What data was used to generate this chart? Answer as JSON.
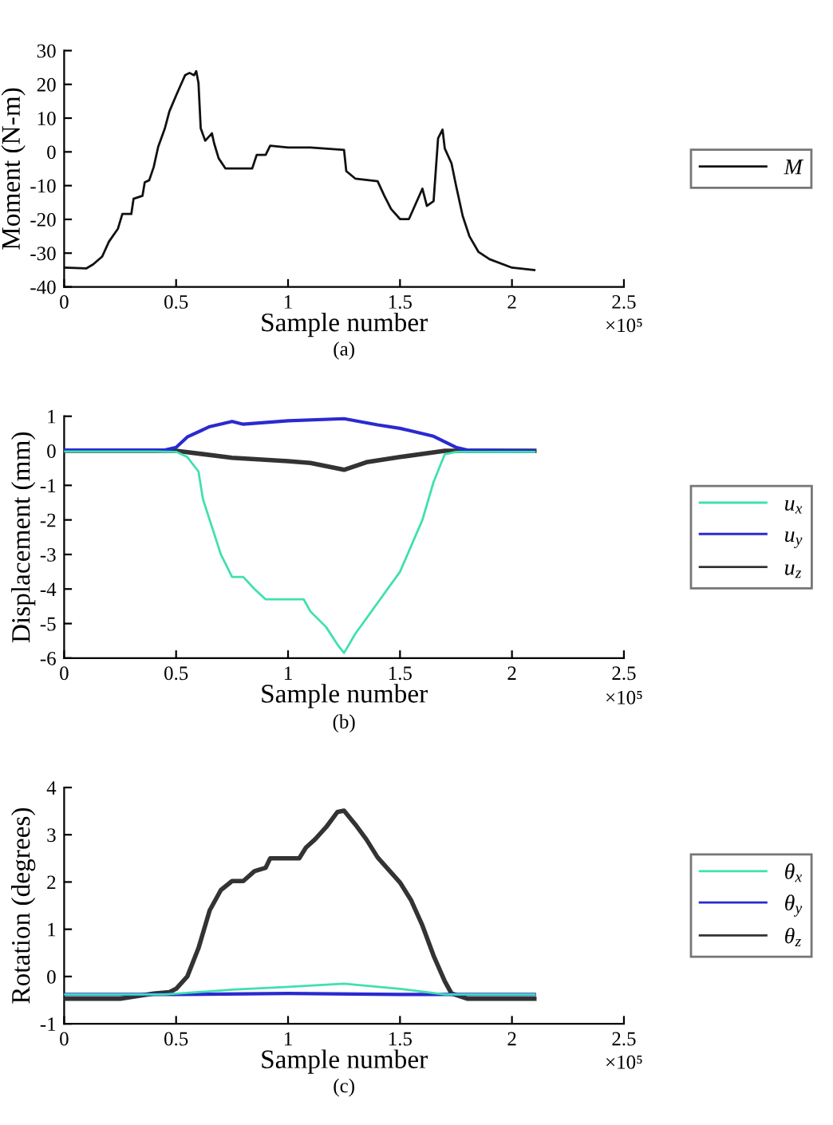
{
  "chart_data": [
    {
      "type": "line",
      "xlabel": "Sample number",
      "ylabel": "Moment (N-m)",
      "annotations": [
        "×10⁵",
        "(a)"
      ],
      "xlim": [
        0,
        2.5
      ],
      "xticks": [
        0,
        0.5,
        1,
        1.5,
        2,
        2.5
      ],
      "ylim": [
        -40,
        30
      ],
      "yticks": [
        -40,
        -30,
        -20,
        -10,
        0,
        10,
        20,
        30
      ],
      "grid": false,
      "legend": "right",
      "line_style": "solid",
      "marker": "none",
      "series": [
        {
          "name": "M",
          "color": "#111111",
          "x": [
            0,
            0.1,
            0.13,
            0.17,
            0.2,
            0.24,
            0.26,
            0.3,
            0.31,
            0.35,
            0.36,
            0.38,
            0.4,
            0.42,
            0.45,
            0.47,
            0.5,
            0.52,
            0.54,
            0.56,
            0.58,
            0.59,
            0.6,
            0.61,
            0.63,
            0.66,
            0.67,
            0.69,
            0.72,
            0.8,
            0.84,
            0.86,
            0.9,
            0.92,
            1.0,
            1.1,
            1.25,
            1.26,
            1.3,
            1.4,
            1.43,
            1.46,
            1.5,
            1.54,
            1.57,
            1.6,
            1.62,
            1.65,
            1.67,
            1.69,
            1.7,
            1.73,
            1.75,
            1.78,
            1.81,
            1.85,
            1.9,
            2.0,
            2.1
          ],
          "values": [
            -34.3,
            -34.5,
            -33.3,
            -31,
            -26.6,
            -22.8,
            -18.4,
            -18.4,
            -13.9,
            -13,
            -9,
            -8.4,
            -4.5,
            1.5,
            7,
            12,
            16.7,
            19.7,
            22.7,
            23.4,
            22.7,
            23.9,
            20.4,
            7,
            3.3,
            5.5,
            2.5,
            -1.9,
            -4.9,
            -4.9,
            -4.9,
            -0.9,
            -0.9,
            1.8,
            1.3,
            1.3,
            0.6,
            -5.7,
            -7.9,
            -8.7,
            -13,
            -16.9,
            -19.9,
            -19.9,
            -15.4,
            -10.9,
            -16,
            -14.6,
            4,
            6.6,
            1,
            -3.4,
            -9.9,
            -19,
            -25,
            -29.6,
            -31.8,
            -34.3,
            -35
          ]
        }
      ]
    },
    {
      "type": "line",
      "xlabel": "Sample number",
      "ylabel": "Displacement (mm)",
      "annotations": [
        "×10⁵",
        "(b)"
      ],
      "xlim": [
        0,
        2.5
      ],
      "xticks": [
        0,
        0.5,
        1,
        1.5,
        2,
        2.5
      ],
      "ylim": [
        -6,
        1
      ],
      "yticks": [
        -6,
        -5,
        -4,
        -3,
        -2,
        -1,
        0,
        1
      ],
      "grid": false,
      "legend": "right",
      "line_style": "solid",
      "marker": "none",
      "series": [
        {
          "name": "u$_{x}$",
          "color": "#40e0b0",
          "x": [
            0,
            0.4,
            0.5,
            0.55,
            0.6,
            0.62,
            0.65,
            0.7,
            0.75,
            0.8,
            0.85,
            0.9,
            1.0,
            1.07,
            1.1,
            1.17,
            1.22,
            1.25,
            1.3,
            1.4,
            1.5,
            1.6,
            1.65,
            1.7,
            1.75,
            2.1
          ],
          "values": [
            -0.02,
            -0.02,
            -0.03,
            -0.18,
            -0.6,
            -1.4,
            -2,
            -3,
            -3.65,
            -3.65,
            -4,
            -4.3,
            -4.3,
            -4.3,
            -4.65,
            -5.1,
            -5.6,
            -5.85,
            -5.3,
            -4.4,
            -3.5,
            -2,
            -0.9,
            -0.1,
            -0.03,
            -0.03
          ]
        },
        {
          "name": "u$_{y}$",
          "color": "#2a2ad0",
          "x": [
            0,
            0.45,
            0.5,
            0.55,
            0.65,
            0.75,
            0.8,
            1.0,
            1.25,
            1.4,
            1.5,
            1.65,
            1.75,
            1.8,
            2.1
          ],
          "values": [
            0.02,
            0.02,
            0.1,
            0.4,
            0.7,
            0.85,
            0.77,
            0.87,
            0.93,
            0.75,
            0.65,
            0.42,
            0.1,
            0.02,
            0
          ]
        },
        {
          "name": "u$_{z}$",
          "color": "#333333",
          "x": [
            0,
            0.5,
            0.75,
            1.0,
            1.1,
            1.25,
            1.35,
            1.5,
            1.7,
            2.1
          ],
          "values": [
            0,
            0,
            -0.2,
            -0.3,
            -0.35,
            -0.55,
            -0.33,
            -0.18,
            0,
            0
          ]
        }
      ]
    },
    {
      "type": "line",
      "xlabel": "Sample number",
      "ylabel": "Rotation (degrees)",
      "annotations": [
        "×10⁵",
        "(c)"
      ],
      "xlim": [
        0,
        2.5
      ],
      "xticks": [
        0,
        0.5,
        1,
        1.5,
        2,
        2.5
      ],
      "ylim": [
        -1,
        4
      ],
      "yticks": [
        -1,
        0,
        1,
        2,
        3,
        4
      ],
      "grid": false,
      "legend": "right",
      "line_style": "solid",
      "marker": "none",
      "series": [
        {
          "name": "θ$_{x}$",
          "color": "#40e0b0",
          "x": [
            0,
            0.45,
            0.75,
            1.0,
            1.25,
            1.5,
            1.7,
            2.1
          ],
          "values": [
            -0.38,
            -0.38,
            -0.28,
            -0.22,
            -0.15,
            -0.26,
            -0.38,
            -0.38
          ]
        },
        {
          "name": "θ$_{y}$",
          "color": "#2a2ad0",
          "x": [
            0,
            0.5,
            1.0,
            1.5,
            2.1
          ],
          "values": [
            -0.38,
            -0.38,
            -0.36,
            -0.38,
            -0.38
          ]
        },
        {
          "name": "θ$_{z}$",
          "color": "#333333",
          "x": [
            0,
            0.25,
            0.4,
            0.47,
            0.5,
            0.55,
            0.6,
            0.65,
            0.7,
            0.75,
            0.8,
            0.85,
            0.9,
            0.92,
            1.05,
            1.08,
            1.12,
            1.17,
            1.22,
            1.25,
            1.3,
            1.35,
            1.4,
            1.5,
            1.55,
            1.6,
            1.65,
            1.7,
            1.73,
            1.8,
            2.1
          ],
          "values": [
            -0.47,
            -0.47,
            -0.36,
            -0.33,
            -0.26,
            0,
            0.6,
            1.4,
            1.83,
            2.02,
            2.02,
            2.23,
            2.3,
            2.5,
            2.5,
            2.73,
            2.9,
            3.16,
            3.48,
            3.51,
            3.22,
            2.9,
            2.52,
            1.99,
            1.61,
            1.08,
            0.44,
            -0.1,
            -0.36,
            -0.47,
            -0.47
          ]
        }
      ]
    }
  ]
}
